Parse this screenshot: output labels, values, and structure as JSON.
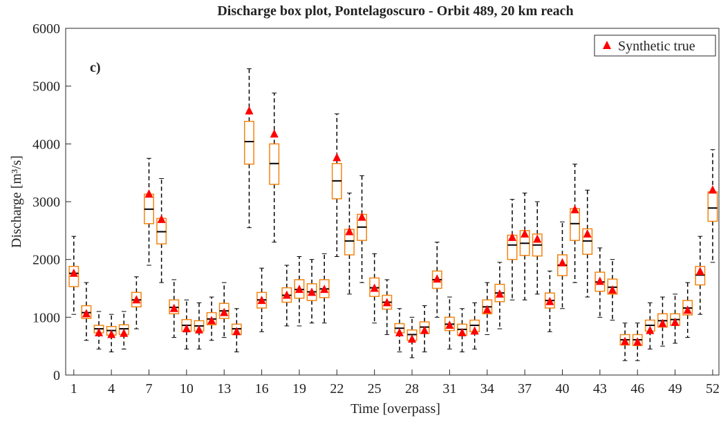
{
  "chart_data": {
    "type": "box",
    "title": "Discharge box plot, Pontelagoscuro - Orbit 489, 20 km reach",
    "annotation": "c)",
    "xlabel": "Time [overpass]",
    "ylabel": "Discharge [m³/s]",
    "x": [
      1,
      2,
      3,
      4,
      5,
      6,
      7,
      8,
      9,
      10,
      11,
      12,
      13,
      14,
      15,
      16,
      17,
      18,
      19,
      20,
      21,
      22,
      23,
      24,
      25,
      26,
      27,
      28,
      29,
      30,
      31,
      32,
      33,
      34,
      35,
      36,
      37,
      38,
      39,
      40,
      41,
      42,
      43,
      44,
      45,
      46,
      47,
      48,
      49,
      50,
      51,
      52
    ],
    "xlim": [
      0.35,
      52.5
    ],
    "xticks": [
      1,
      4,
      7,
      10,
      13,
      16,
      19,
      22,
      25,
      28,
      31,
      34,
      37,
      40,
      43,
      46,
      49,
      52
    ],
    "ylim": [
      0,
      6000
    ],
    "yticks": [
      0,
      1000,
      2000,
      3000,
      4000,
      5000,
      6000
    ],
    "box_color": "#f28410",
    "median_color": "#000000",
    "whisker_color": "#000000",
    "boxes": {
      "whislo": [
        1050,
        600,
        450,
        400,
        450,
        800,
        1900,
        1600,
        650,
        450,
        450,
        600,
        650,
        400,
        2550,
        750,
        2300,
        850,
        850,
        900,
        900,
        2050,
        1400,
        1600,
        900,
        700,
        400,
        300,
        400,
        1000,
        450,
        400,
        450,
        700,
        800,
        1300,
        1300,
        1400,
        750,
        1150,
        1600,
        1350,
        1000,
        950,
        250,
        250,
        450,
        500,
        550,
        650,
        1050,
        1950
      ],
      "q1": [
        1530,
        980,
        730,
        690,
        700,
        1180,
        2620,
        2270,
        1060,
        760,
        760,
        870,
        980,
        700,
        3650,
        1160,
        3300,
        1260,
        1330,
        1290,
        1340,
        3050,
        2080,
        2330,
        1360,
        1140,
        730,
        600,
        720,
        1500,
        770,
        690,
        750,
        1060,
        1270,
        2000,
        2070,
        2060,
        1160,
        1720,
        2330,
        2090,
        1450,
        1400,
        520,
        510,
        760,
        830,
        860,
        1040,
        1560,
        2660
      ],
      "median": [
        1760,
        1080,
        800,
        770,
        800,
        1300,
        2870,
        2480,
        1170,
        860,
        850,
        970,
        1110,
        800,
        4040,
        1300,
        3660,
        1380,
        1480,
        1440,
        1490,
        3360,
        2320,
        2560,
        1510,
        1260,
        810,
        700,
        830,
        1650,
        880,
        790,
        860,
        1180,
        1420,
        2250,
        2280,
        2250,
        1290,
        1900,
        2620,
        2320,
        1610,
        1520,
        610,
        610,
        860,
        940,
        960,
        1160,
        1730,
        2890
      ],
      "q3": [
        1880,
        1200,
        860,
        840,
        870,
        1430,
        3130,
        2710,
        1300,
        960,
        940,
        1080,
        1240,
        880,
        4390,
        1430,
        4000,
        1510,
        1650,
        1580,
        1650,
        3660,
        2520,
        2780,
        1680,
        1380,
        890,
        780,
        920,
        1800,
        1000,
        880,
        950,
        1300,
        1570,
        2420,
        2500,
        2440,
        1420,
        2080,
        2880,
        2530,
        1780,
        1660,
        700,
        700,
        950,
        1060,
        1060,
        1290,
        1880,
        3170
      ],
      "whishi": [
        2400,
        1600,
        1100,
        1050,
        1100,
        1700,
        3750,
        3400,
        1650,
        1300,
        1250,
        1350,
        1600,
        1150,
        5300,
        1850,
        4880,
        1900,
        2050,
        2000,
        2100,
        4520,
        3150,
        3450,
        2100,
        1650,
        1150,
        1000,
        1200,
        2300,
        1350,
        1150,
        1250,
        1600,
        1950,
        3040,
        3150,
        3000,
        1800,
        2650,
        3650,
        3200,
        2200,
        2000,
        900,
        900,
        1250,
        1350,
        1400,
        1600,
        2400,
        3900
      ]
    },
    "series": [
      {
        "name": "Synthetic true",
        "color": "#ff0000",
        "values": [
          1760,
          1060,
          730,
          700,
          720,
          1300,
          3130,
          2690,
          1150,
          800,
          780,
          940,
          1080,
          750,
          4570,
          1290,
          4170,
          1380,
          1480,
          1430,
          1480,
          3760,
          2480,
          2730,
          1500,
          1250,
          730,
          620,
          770,
          1660,
          860,
          730,
          760,
          1130,
          1400,
          2380,
          2440,
          2350,
          1270,
          1940,
          2860,
          2440,
          1620,
          1470,
          580,
          570,
          770,
          890,
          910,
          1120,
          1790,
          3200
        ]
      }
    ],
    "legend": "upper right"
  }
}
